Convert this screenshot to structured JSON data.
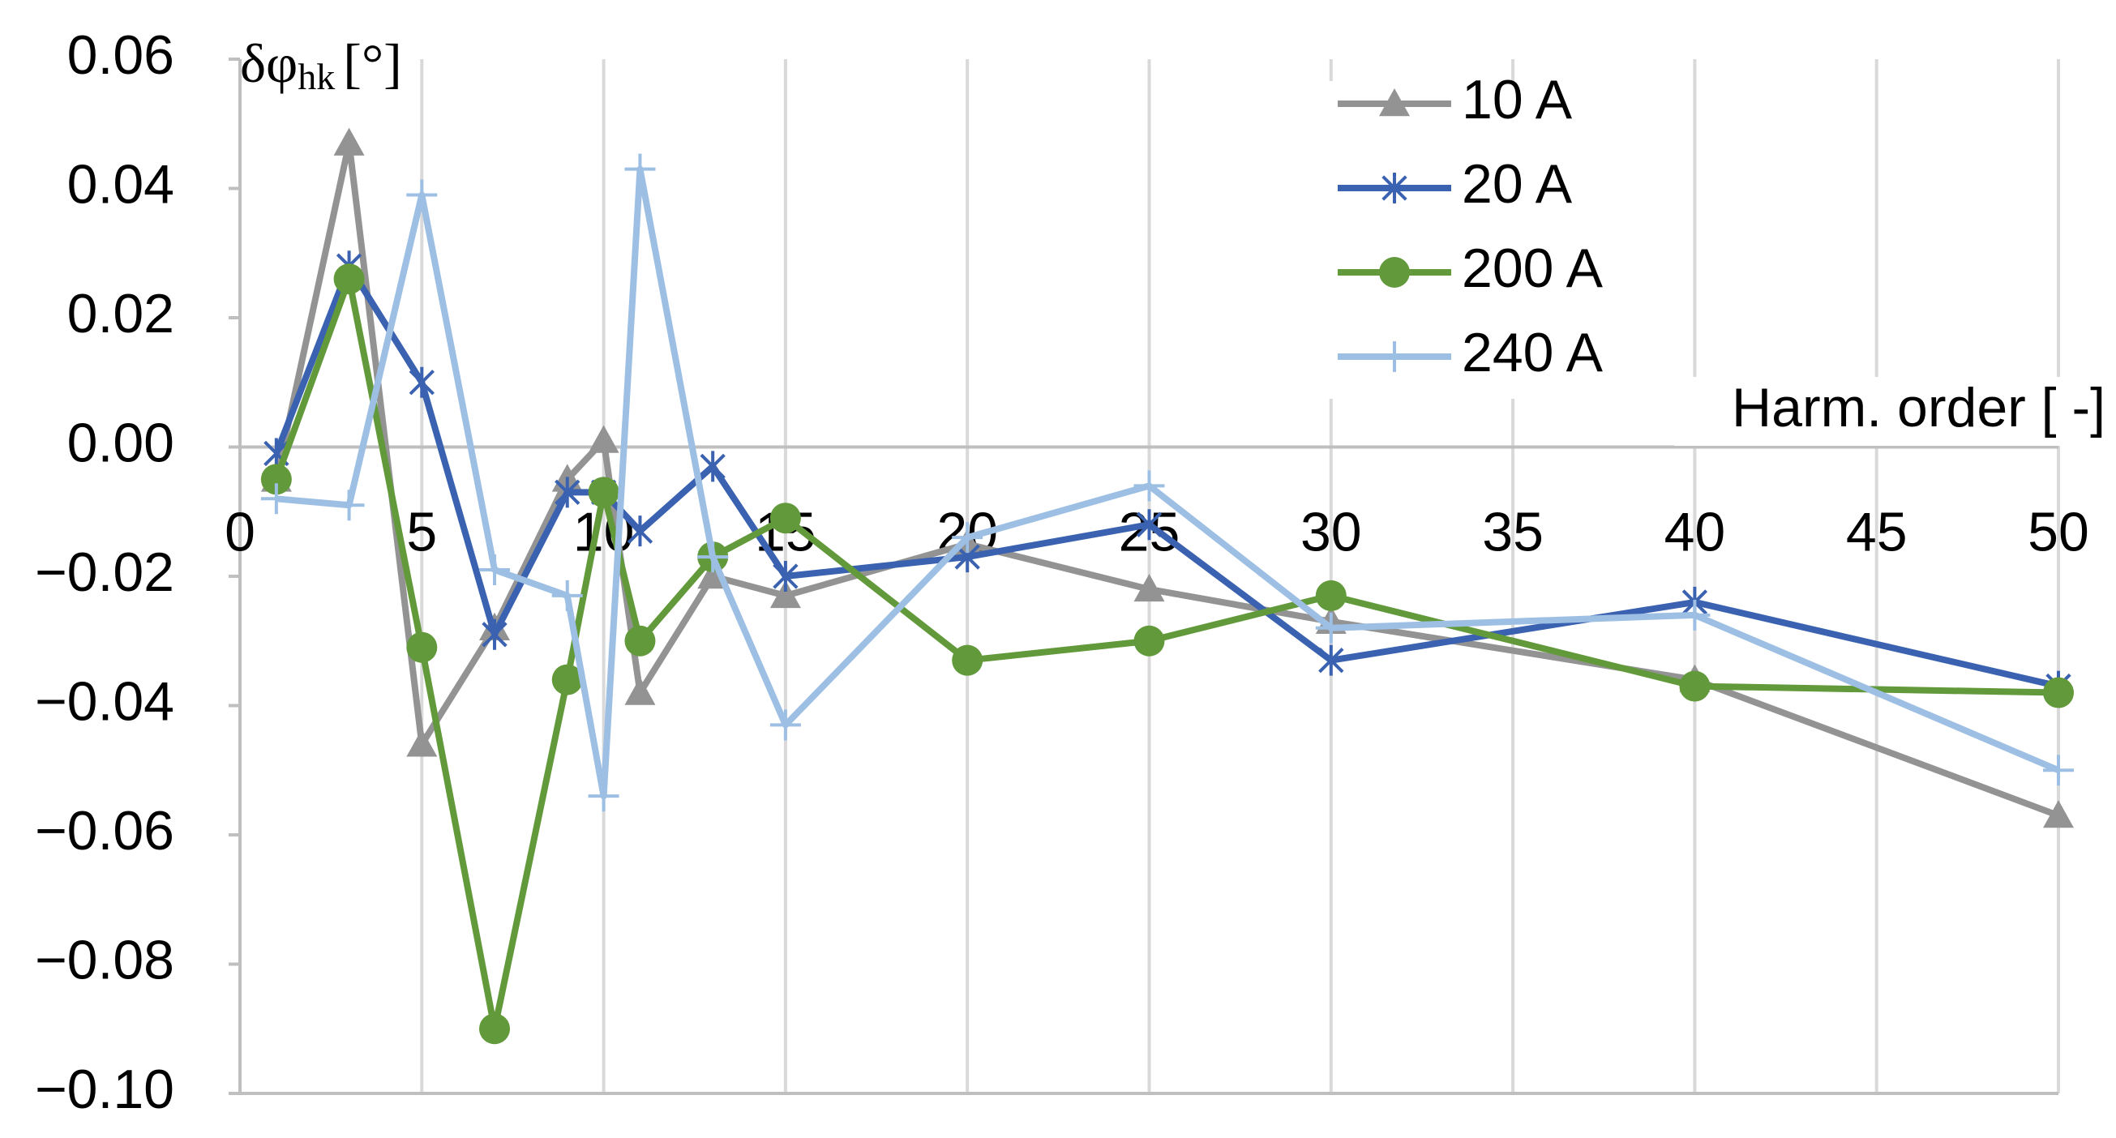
{
  "chart_data": {
    "type": "line",
    "y_label": {
      "symbol": "δφ",
      "subscript": "hk",
      "unit": "[°]"
    },
    "x_label": "Harm. order [ -]",
    "x": [
      1,
      3,
      5,
      7,
      9,
      10,
      11,
      13,
      15,
      20,
      25,
      30,
      40,
      50
    ],
    "series": [
      {
        "name": "10 A",
        "color": "#939393",
        "marker": "triangle",
        "values": [
          -0.005,
          0.047,
          -0.046,
          -0.028,
          -0.005,
          0.001,
          -0.038,
          -0.02,
          -0.023,
          -0.015,
          -0.022,
          -0.027,
          -0.036,
          -0.057
        ]
      },
      {
        "name": "20 A",
        "color": "#3a62b0",
        "marker": "asterisk",
        "values": [
          -0.001,
          0.028,
          0.01,
          -0.029,
          -0.007,
          -0.007,
          -0.013,
          -0.003,
          -0.02,
          -0.017,
          -0.012,
          -0.033,
          -0.024,
          -0.037
        ]
      },
      {
        "name": "200 A",
        "color": "#62993a",
        "marker": "circle",
        "values": [
          -0.005,
          0.026,
          -0.031,
          -0.09,
          -0.036,
          -0.007,
          -0.03,
          -0.017,
          -0.011,
          -0.033,
          -0.03,
          -0.023,
          -0.037,
          -0.038
        ]
      },
      {
        "name": "240 A",
        "color": "#9dbfe4",
        "marker": "plus",
        "values": [
          -0.008,
          -0.009,
          0.039,
          -0.019,
          -0.023,
          -0.054,
          0.043,
          -0.017,
          -0.043,
          -0.014,
          -0.006,
          -0.028,
          -0.026,
          -0.05
        ]
      }
    ],
    "xlim": [
      0,
      50
    ],
    "xticks": [
      0,
      5,
      10,
      15,
      20,
      25,
      30,
      35,
      40,
      45,
      50
    ],
    "ylim": [
      -0.1,
      0.06
    ],
    "yticks": [
      {
        "value": 0.06,
        "label": "0.06"
      },
      {
        "value": 0.04,
        "label": "0.04"
      },
      {
        "value": 0.02,
        "label": "0.02"
      },
      {
        "value": 0,
        "label": "0.00"
      },
      {
        "value": -0.02,
        "label": "−0.02"
      },
      {
        "value": -0.04,
        "label": "−0.04"
      },
      {
        "value": -0.06,
        "label": "−0.06"
      },
      {
        "value": -0.08,
        "label": "−0.08"
      },
      {
        "value": -0.1,
        "label": "−0.10"
      }
    ],
    "grid": "x",
    "legend": "upper-right"
  }
}
